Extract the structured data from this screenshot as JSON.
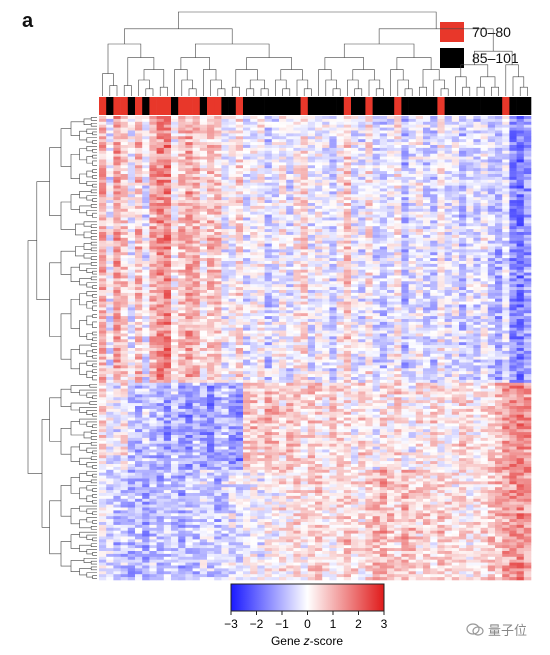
{
  "panel_label": "a",
  "legend": {
    "items": [
      {
        "label": "70–80",
        "color": "#e8372a"
      },
      {
        "label": "85–101",
        "color": "#000000"
      }
    ]
  },
  "colorbar": {
    "ticks": [
      "−3",
      "−2",
      "−1",
      "0",
      "1",
      "2",
      "3"
    ],
    "tick_values": [
      -3,
      -2,
      -1,
      0,
      1,
      2,
      3
    ],
    "label_prefix": "Gene ",
    "label_italic": "z",
    "label_suffix": "-score",
    "low_color": "#1a1aff",
    "mid_color": "#ffffff",
    "high_color": "#e01b1b"
  },
  "watermark": {
    "text": "量子位"
  },
  "chart_data": {
    "type": "heatmap",
    "title": "",
    "xlabel": "",
    "ylabel": "",
    "value_range": [
      -3,
      3
    ],
    "column_groups": [
      "70–80",
      "85–101"
    ],
    "column_annotation": [
      "70–80",
      "85–101",
      "70–80",
      "70–80",
      "85–101",
      "70–80",
      "85–101",
      "70–80",
      "70–80",
      "70–80",
      "85–101",
      "70–80",
      "70–80",
      "70–80",
      "85–101",
      "70–80",
      "70–80",
      "85–101",
      "85–101",
      "70–80",
      "85–101",
      "85–101",
      "85–101",
      "85–101",
      "85–101",
      "85–101",
      "85–101",
      "85–101",
      "70–80",
      "85–101",
      "85–101",
      "85–101",
      "85–101",
      "85–101",
      "70–80",
      "85–101",
      "85–101",
      "70–80",
      "85–101",
      "85–101",
      "85–101",
      "70–80",
      "85–101",
      "85–101",
      "85–101",
      "85–101",
      "85–101",
      "70–80",
      "85–101",
      "85–101",
      "85–101",
      "85–101",
      "85–101",
      "85–101",
      "85–101",
      "85–101",
      "70–80",
      "85–101",
      "85–101",
      "85–101"
    ],
    "row_clusters": [
      "upper",
      "middle",
      "lower"
    ],
    "row_cluster_profiles": [
      [
        1.2,
        -0.3,
        1.5,
        0.8,
        -0.2,
        1.0,
        -0.4,
        1.3,
        1.8,
        2.0,
        0.2,
        0.9,
        1.4,
        1.1,
        0.3,
        1.0,
        0.8,
        -0.2,
        -0.1,
        0.6,
        -0.5,
        0.0,
        0.2,
        -0.8,
        -0.3,
        0.1,
        -0.6,
        0.2,
        0.5,
        -0.4,
        0.0,
        -0.2,
        -0.7,
        0.1,
        0.9,
        -0.3,
        -0.5,
        0.4,
        -0.6,
        -0.9,
        -0.3,
        0.2,
        -1.0,
        -0.4,
        0.0,
        -0.6,
        -0.8,
        0.1,
        -0.5,
        -0.2,
        -0.9,
        -0.3,
        -0.6,
        -0.1,
        -0.8,
        -1.2,
        -0.4,
        -1.8,
        -2.0,
        -1.5
      ],
      [
        0.6,
        -0.2,
        -0.4,
        0.3,
        -0.8,
        -1.0,
        -0.6,
        -0.9,
        -1.2,
        -1.5,
        -0.8,
        -1.3,
        -1.6,
        -1.0,
        -1.4,
        -1.7,
        -1.2,
        -0.9,
        -1.5,
        -1.8,
        0.8,
        1.0,
        0.6,
        1.2,
        0.9,
        0.4,
        1.1,
        0.7,
        0.3,
        0.9,
        0.5,
        0.2,
        0.8,
        0.6,
        0.4,
        0.0,
        0.6,
        0.3,
        -0.2,
        0.5,
        0.2,
        0.7,
        0.1,
        -0.3,
        0.4,
        0.0,
        0.6,
        0.2,
        -0.1,
        0.3,
        0.8,
        0.5,
        0.1,
        0.4,
        0.6,
        1.0,
        1.5,
        1.8,
        2.0,
        1.6
      ],
      [
        -0.4,
        -0.6,
        -1.0,
        -0.8,
        -1.2,
        -0.9,
        -1.4,
        -0.7,
        -1.1,
        -0.6,
        -0.9,
        -1.3,
        -0.8,
        -1.0,
        -0.5,
        -0.7,
        -1.1,
        -0.6,
        -0.3,
        -0.5,
        -0.2,
        0.1,
        -0.3,
        0.2,
        0.0,
        0.4,
        0.3,
        0.6,
        0.2,
        0.5,
        0.8,
        0.4,
        0.2,
        0.6,
        0.9,
        0.5,
        0.3,
        0.7,
        1.0,
        1.2,
        0.8,
        0.6,
        1.1,
        0.9,
        0.5,
        0.7,
        0.4,
        0.8,
        0.6,
        0.3,
        0.5,
        0.2,
        0.4,
        0.6,
        0.8,
        1.0,
        1.4,
        1.6,
        1.8,
        1.5
      ]
    ]
  }
}
